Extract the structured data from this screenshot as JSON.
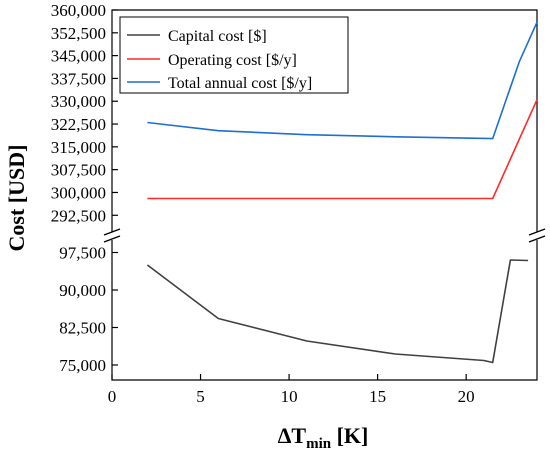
{
  "chart_data": {
    "type": "line",
    "xlabel": "ΔT",
    "xlabel_sub": "min",
    "xlabel_unit": " [K]",
    "ylabel": "Cost [USD]",
    "xlim": [
      0,
      24
    ],
    "x_ticks": [
      0,
      5,
      10,
      15,
      20
    ],
    "axis_break": true,
    "upper_ylim": [
      287000,
      360000
    ],
    "upper_y_ticks": [
      292500,
      300000,
      307500,
      315000,
      322500,
      330000,
      337500,
      345000,
      352500,
      360000
    ],
    "lower_ylim": [
      72000,
      100000
    ],
    "lower_y_ticks": [
      75000,
      82500,
      90000,
      97500
    ],
    "grid": false,
    "legend_position": "top-left",
    "series": [
      {
        "name": "Capital cost [$]",
        "color": "#404040",
        "panel": "lower",
        "x": [
          2,
          6,
          11,
          16,
          21,
          21.5,
          22.5,
          23.5
        ],
        "y": [
          95000,
          84300,
          79800,
          77200,
          75900,
          75500,
          96000,
          95900
        ]
      },
      {
        "name": "Operating cost  [$/y]",
        "color": "#ff2a2a",
        "panel": "upper",
        "x": [
          2,
          6,
          11,
          16,
          21.5,
          24
        ],
        "y": [
          298000,
          298000,
          298000,
          298000,
          298000,
          330500
        ]
      },
      {
        "name": "Total annual cost [$/y]",
        "color": "#1f6fd1",
        "panel": "upper",
        "x": [
          2,
          6,
          11,
          16,
          21.5,
          23,
          24
        ],
        "y": [
          323000,
          320300,
          319000,
          318300,
          317700,
          343000,
          356000
        ]
      }
    ]
  }
}
